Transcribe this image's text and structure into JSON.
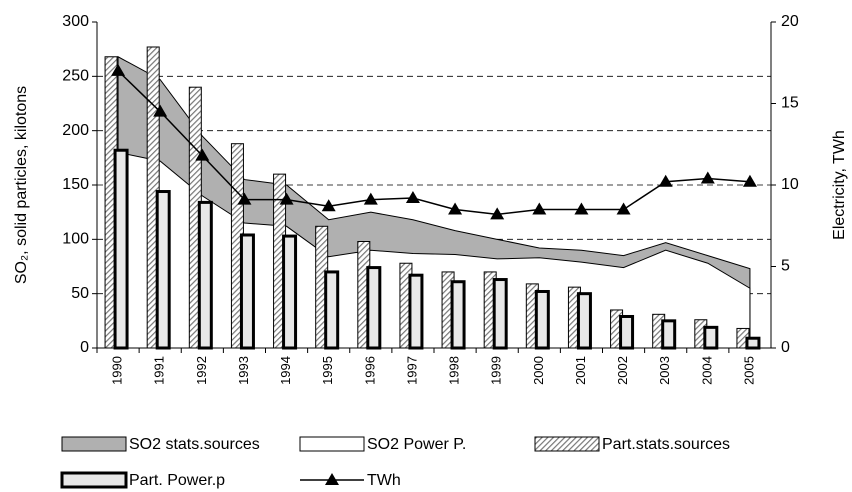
{
  "chart_data": {
    "type": "combo",
    "y_label": "SO₂, solid particles, kilotons",
    "y2_label": "Electricity, TWh",
    "categories": [
      "1990",
      "1991",
      "1992",
      "1993",
      "1994",
      "1995",
      "1996",
      "1997",
      "1998",
      "1999",
      "2000",
      "2001",
      "2002",
      "2003",
      "2004",
      "2005"
    ],
    "ylim": [
      0,
      300
    ],
    "yticks": [
      0,
      50,
      100,
      150,
      200,
      250,
      300
    ],
    "y2lim": [
      0,
      20
    ],
    "y2ticks": [
      0,
      5,
      10,
      15,
      20
    ],
    "grid": true,
    "legend": "bottom",
    "series": [
      {
        "name": "SO2 stats.sources",
        "kind": "area",
        "color": "#b0b0b0",
        "values": [
          268,
          247,
          195,
          155,
          150,
          118,
          125,
          118,
          108,
          100,
          92,
          90,
          85,
          97,
          85,
          73
        ]
      },
      {
        "name": "SO2 Power P.",
        "kind": "area",
        "color": "#ffffff",
        "values": [
          180,
          172,
          140,
          115,
          112,
          84,
          90,
          87,
          86,
          82,
          83,
          79,
          74,
          90,
          78,
          55
        ]
      },
      {
        "name": "Part.stats.sources",
        "kind": "bar",
        "color": "#9a9a9a",
        "values": [
          268,
          277,
          240,
          188,
          160,
          112,
          98,
          78,
          70,
          70,
          59,
          56,
          35,
          31,
          26,
          18
        ]
      },
      {
        "name": "Part. Power.p",
        "kind": "bar",
        "color": "#e8e8e8",
        "values": [
          182,
          144,
          134,
          104,
          103,
          70,
          74,
          67,
          61,
          63,
          52,
          50,
          29,
          25,
          19,
          9
        ]
      },
      {
        "name": "TWh",
        "kind": "line",
        "axis": "y2",
        "color": "#000000",
        "values": [
          17,
          14.5,
          11.8,
          9.1,
          9.1,
          8.7,
          9.1,
          9.2,
          8.5,
          8.2,
          8.5,
          8.5,
          8.5,
          10.2,
          10.4,
          10.2
        ]
      }
    ]
  }
}
